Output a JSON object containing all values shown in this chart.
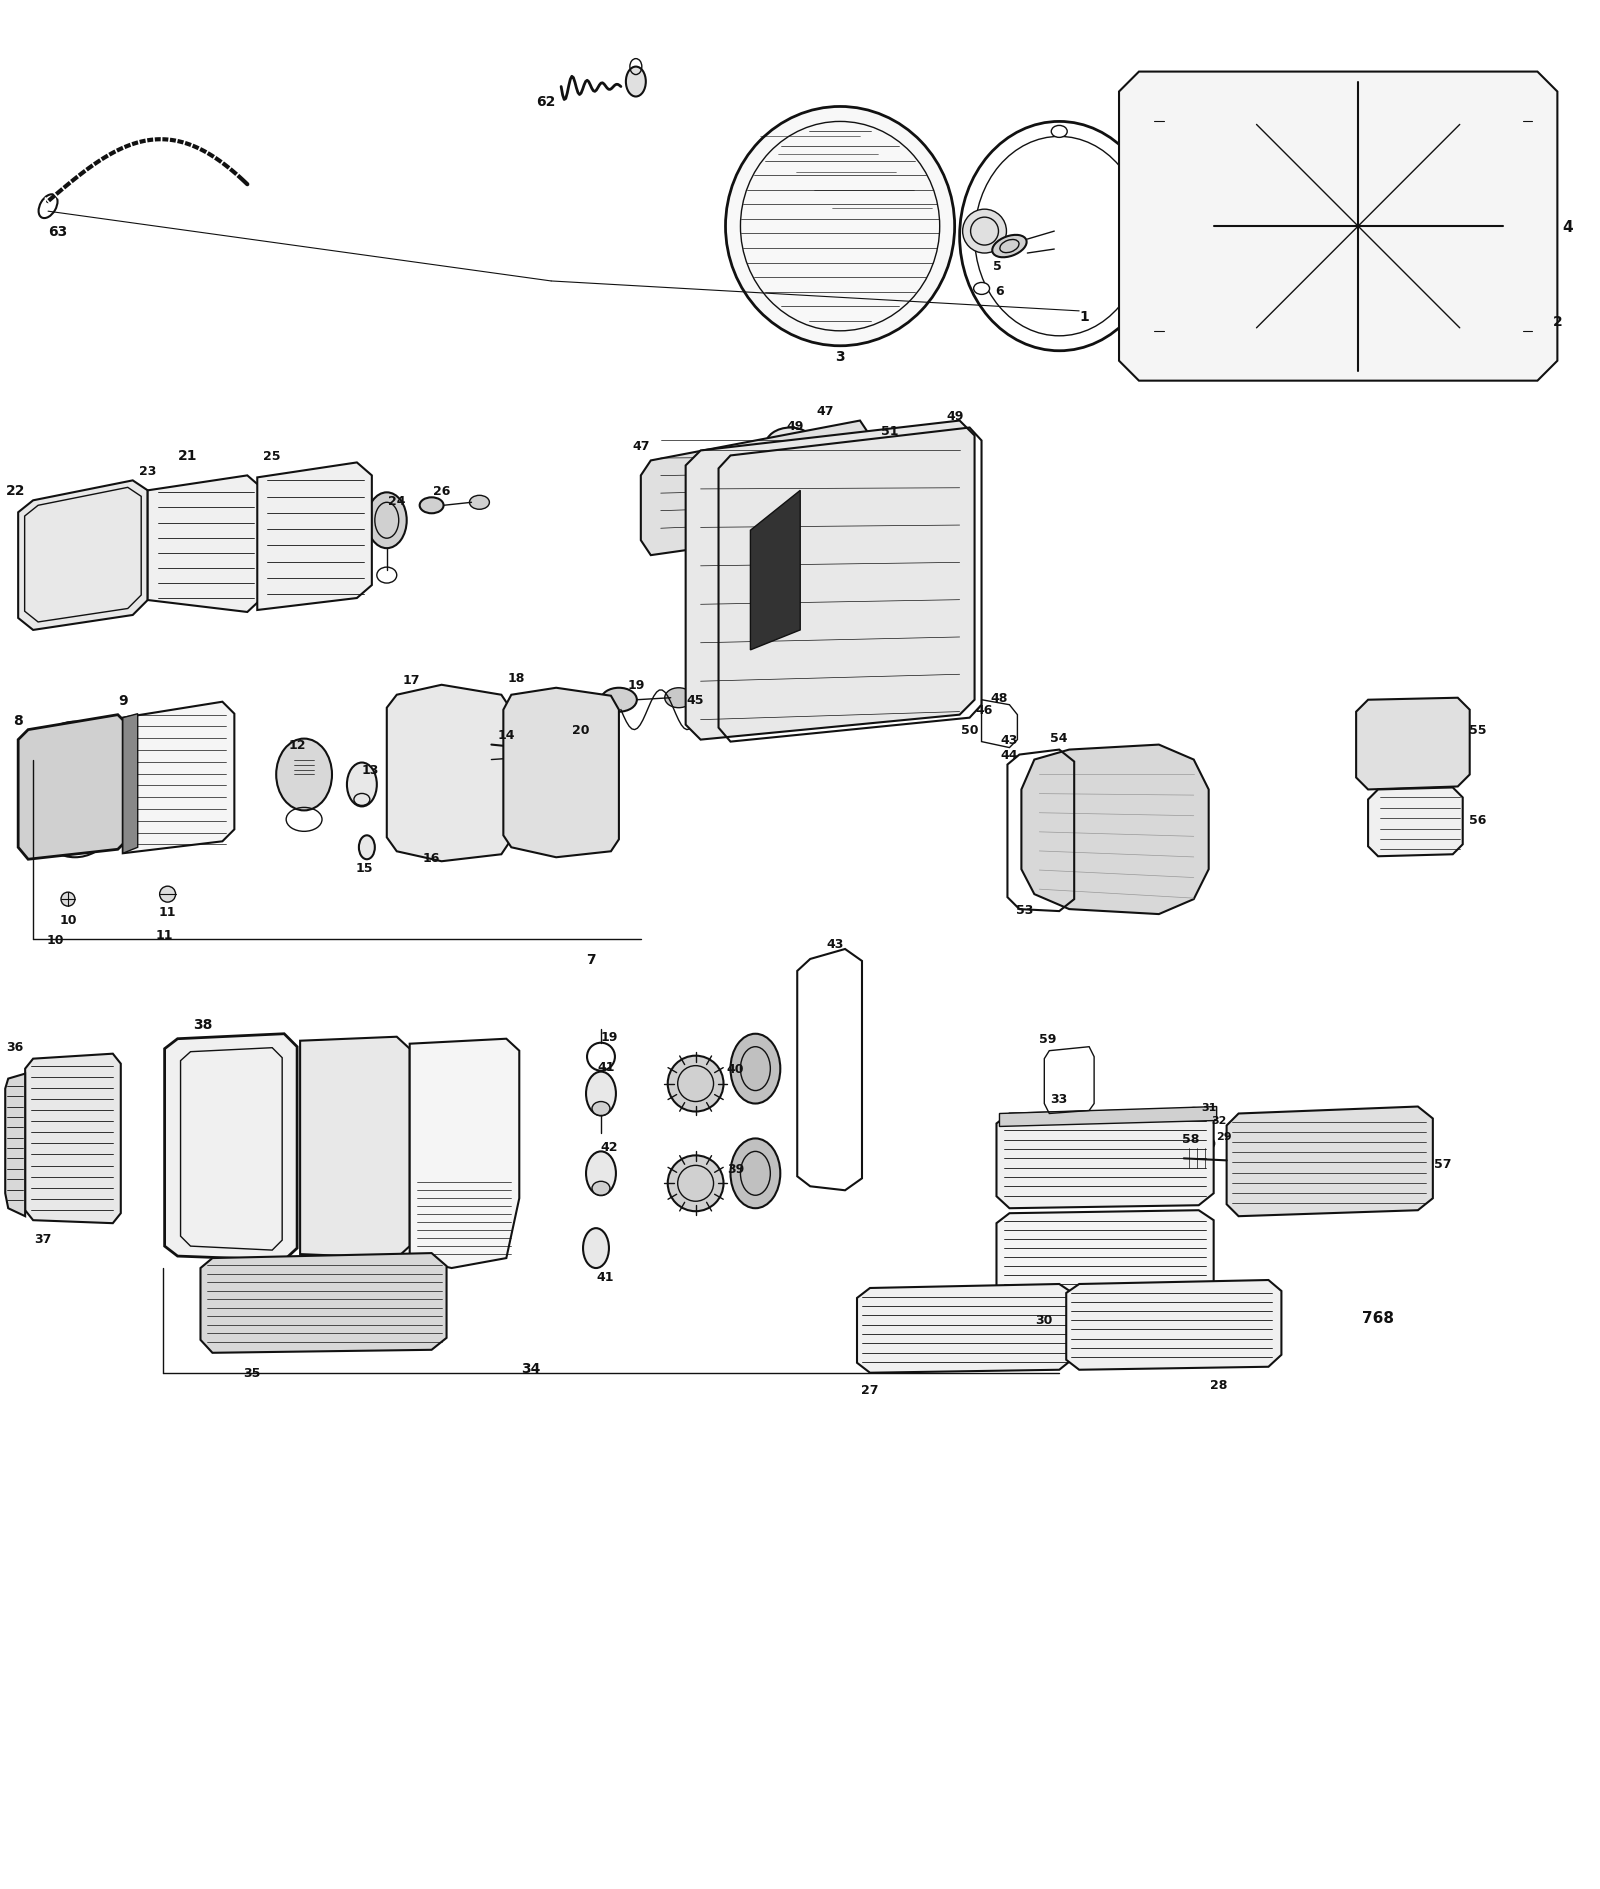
{
  "background_color": "#ffffff",
  "line_color": "#111111",
  "fig_width": 16.0,
  "fig_height": 18.9,
  "dpi": 100
}
